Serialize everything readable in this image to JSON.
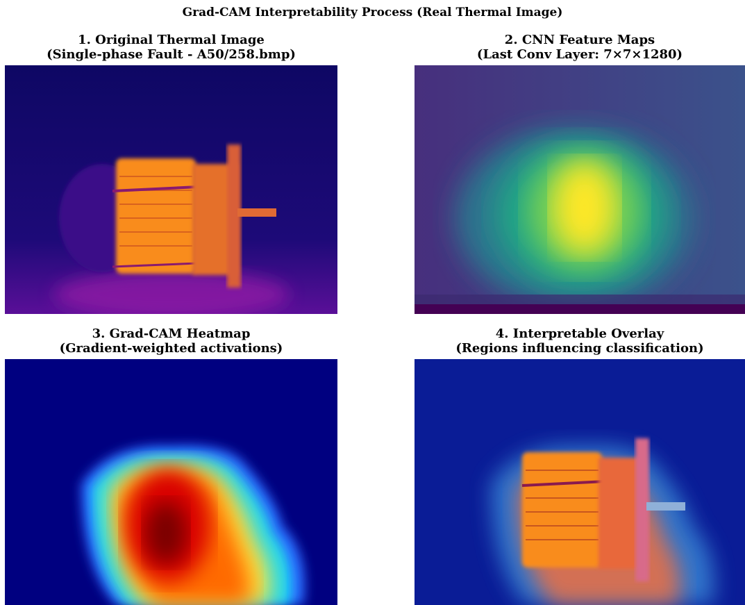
{
  "title": "Grad-CAM Interpretability Process (Real Thermal Image)",
  "panels": [
    {
      "title": "1. Original Thermal Image",
      "subtitle": "(Single-phase Fault - A50/258.bmp)"
    },
    {
      "title": "2. CNN Feature Maps",
      "subtitle": "(Last Conv Layer: 7×7×1280)"
    },
    {
      "title": "3. Grad-CAM Heatmap",
      "subtitle": "(Gradient-weighted activations)"
    },
    {
      "title": "4. Interpretable Overlay",
      "subtitle": "(Regions influencing classification)"
    }
  ]
}
